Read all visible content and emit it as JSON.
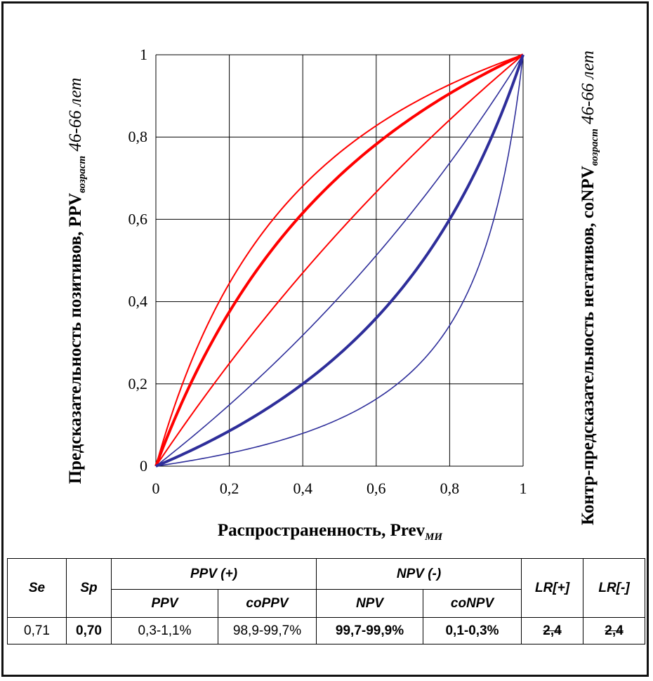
{
  "labels": {
    "y_left_main": "Предсказательность позитивов, PPV",
    "y_left_sub": "возраст",
    "y_left_suffix": "46-66 лет",
    "y_right_main": "Контр-предсказательность негативов, coNPV",
    "y_right_sub": "возраст",
    "y_right_suffix": "46-66 лет",
    "x_main": "Распространенность, Prev",
    "x_sub": "МИ"
  },
  "table": {
    "h_se": "Se",
    "h_sp": "Sp",
    "h_ppv_group": "PPV (+)",
    "h_npv_group": "NPV (-)",
    "h_lrp": "LR[+]",
    "h_lrn": "LR[-]",
    "h_ppv": "PPV",
    "h_coppv": "coPPV",
    "h_npv": "NPV",
    "h_conpv": "coNPV",
    "v_se": "0,71",
    "v_sp": "0,70",
    "v_ppv": "0,3-1,1%",
    "v_coppv": "98,9-99,7%",
    "v_npv": "99,7-99,9%",
    "v_conpv": "0,1-0,3%",
    "v_lrp": "2,4",
    "v_lrn": "2,4"
  },
  "chart_data": {
    "type": "line",
    "x_ticks": [
      "0",
      "0,2",
      "0,4",
      "0,6",
      "0,8",
      "1"
    ],
    "y_ticks": [
      "0",
      "0,2",
      "0,4",
      "0,6",
      "0,8",
      "1"
    ],
    "xlim": [
      0,
      1
    ],
    "ylim": [
      0,
      1
    ],
    "grid": true,
    "colors": {
      "ppv": "#ff0000",
      "conpv": "#2e2e9a"
    },
    "curve_ratios": [
      {
        "group": "ppv",
        "k": 2.4,
        "width": 4
      },
      {
        "group": "ppv",
        "k": 3.2,
        "width": 2
      },
      {
        "group": "ppv",
        "k": 1.33,
        "width": 2
      },
      {
        "group": "conpv",
        "k": 0.7,
        "width": 1.6
      },
      {
        "group": "conpv",
        "k": 0.375,
        "width": 4
      },
      {
        "group": "conpv",
        "k": 0.13,
        "width": 1.6
      }
    ]
  }
}
